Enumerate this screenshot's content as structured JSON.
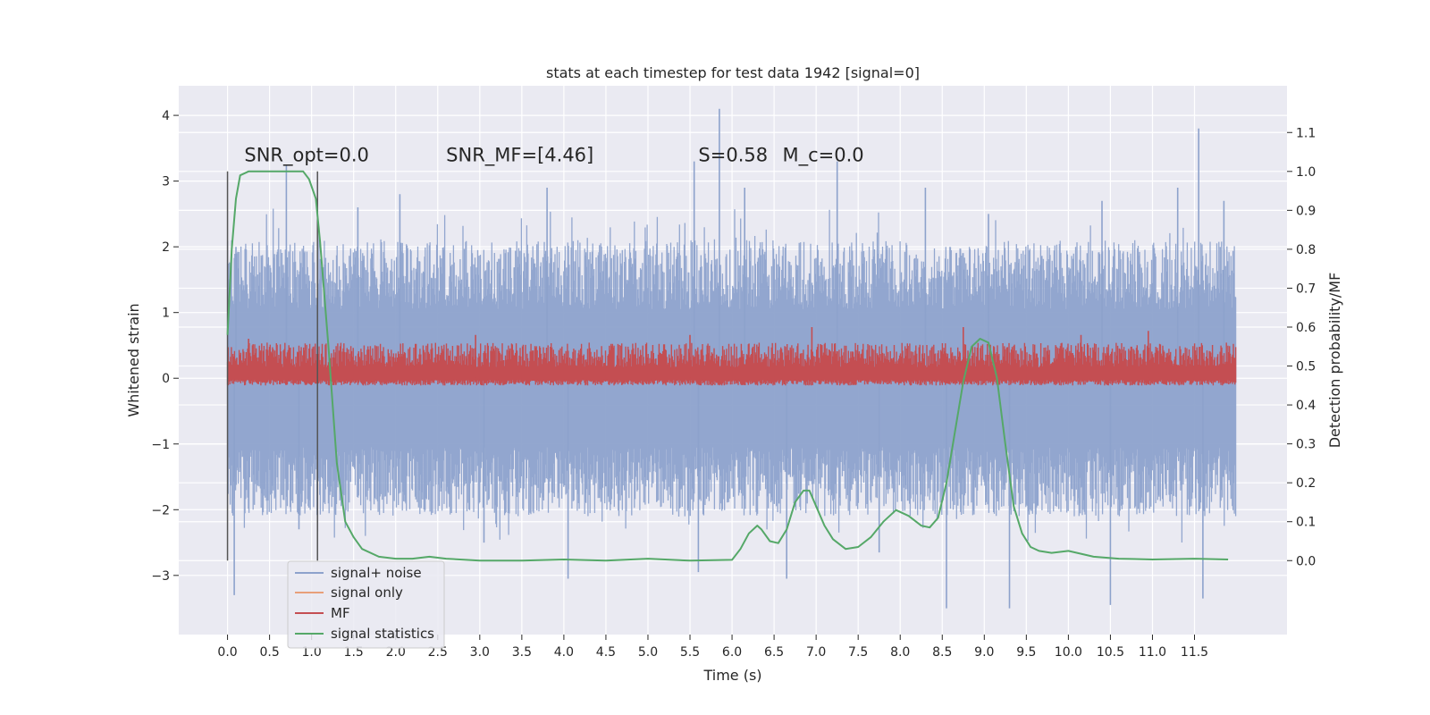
{
  "chart_data": {
    "type": "line",
    "title": "stats at each timestep for test data 1942 [signal=0]",
    "xlabel": "Time (s)",
    "ylabel": "Whitened strain",
    "y2label": "Detection probability/MF",
    "xlim": [
      -0.58,
      12.6
    ],
    "ylim": [
      -3.9,
      4.45
    ],
    "y2lim": [
      -0.19,
      1.22
    ],
    "xticks": [
      0.0,
      0.5,
      1.0,
      1.5,
      2.0,
      2.5,
      3.0,
      3.5,
      4.0,
      4.5,
      5.0,
      5.5,
      6.0,
      6.5,
      7.0,
      7.5,
      8.0,
      8.5,
      9.0,
      9.5,
      10.0,
      10.5,
      11.0,
      11.5
    ],
    "xtick_labels": [
      "0.0",
      "0.5",
      "1.0",
      "1.5",
      "2.0",
      "2.5",
      "3.0",
      "3.5",
      "4.0",
      "4.5",
      "5.0",
      "5.5",
      "6.0",
      "6.5",
      "7.0",
      "7.5",
      "8.0",
      "8.5",
      "9.0",
      "9.5",
      "10.0",
      "10.5",
      "11.0",
      "11.5"
    ],
    "yticks": [
      -3,
      -2,
      -1,
      0,
      1,
      2,
      3,
      4
    ],
    "ytick_labels": [
      "−3",
      "−2",
      "−1",
      "0",
      "1",
      "2",
      "3",
      "4"
    ],
    "y2ticks": [
      0.0,
      0.1,
      0.2,
      0.3,
      0.4,
      0.5,
      0.6,
      0.7,
      0.8,
      0.9,
      1.0,
      1.1
    ],
    "y2tick_labels": [
      "0.0",
      "0.1",
      "0.2",
      "0.3",
      "0.4",
      "0.5",
      "0.6",
      "0.7",
      "0.8",
      "0.9",
      "1.0",
      "1.1"
    ],
    "grid": true,
    "legend_position": "lower-left",
    "time_range": [
      0.0,
      11.99
    ],
    "signal_noise": {
      "name": "signal+ noise",
      "color": "#8da2cc",
      "band": [
        -1.4,
        1.4
      ],
      "peaks_max": [
        [
          0.1,
          2.0
        ],
        [
          0.7,
          3.25
        ],
        [
          1.55,
          2.6
        ],
        [
          2.05,
          2.8
        ],
        [
          3.8,
          2.9
        ],
        [
          5.55,
          3.3
        ],
        [
          5.85,
          4.1
        ],
        [
          6.15,
          2.9
        ],
        [
          7.25,
          3.3
        ],
        [
          8.3,
          2.9
        ],
        [
          9.05,
          2.5
        ],
        [
          10.4,
          2.7
        ],
        [
          11.3,
          2.9
        ],
        [
          11.55,
          3.8
        ],
        [
          11.85,
          2.7
        ]
      ],
      "peaks_min": [
        [
          0.08,
          -3.3
        ],
        [
          0.85,
          -2.3
        ],
        [
          3.05,
          -2.5
        ],
        [
          4.05,
          -3.05
        ],
        [
          5.6,
          -2.95
        ],
        [
          6.65,
          -3.05
        ],
        [
          7.75,
          -2.65
        ],
        [
          8.55,
          -3.5
        ],
        [
          9.3,
          -3.5
        ],
        [
          10.5,
          -3.45
        ],
        [
          11.6,
          -3.35
        ]
      ]
    },
    "signal_only": {
      "name": "signal only",
      "color": "#e8a07a"
    },
    "mf": {
      "name": "MF",
      "color": "#c44e52",
      "baseline": 0.47,
      "band": [
        0.45,
        0.56
      ],
      "peaks": [
        [
          0.25,
          0.57
        ],
        [
          2.95,
          0.58
        ],
        [
          5.5,
          0.58
        ],
        [
          6.95,
          0.6
        ],
        [
          8.75,
          0.6
        ],
        [
          10.15,
          0.58
        ],
        [
          10.95,
          0.59
        ]
      ]
    },
    "signal_statistics": {
      "name": "signal statistics",
      "color": "#55a868",
      "x": [
        0.0,
        0.05,
        0.1,
        0.15,
        0.25,
        0.4,
        0.6,
        0.8,
        0.9,
        0.97,
        1.05,
        1.1,
        1.2,
        1.3,
        1.4,
        1.5,
        1.6,
        1.8,
        2.0,
        2.2,
        2.4,
        2.6,
        3.0,
        3.5,
        4.0,
        4.5,
        5.0,
        5.5,
        6.0,
        6.1,
        6.2,
        6.3,
        6.35,
        6.45,
        6.55,
        6.65,
        6.75,
        6.85,
        6.92,
        7.0,
        7.1,
        7.2,
        7.35,
        7.5,
        7.65,
        7.8,
        7.95,
        8.1,
        8.25,
        8.35,
        8.45,
        8.55,
        8.65,
        8.75,
        8.85,
        8.95,
        9.05,
        9.15,
        9.25,
        9.35,
        9.45,
        9.55,
        9.65,
        9.8,
        10.0,
        10.3,
        10.6,
        11.0,
        11.5,
        11.9
      ],
      "y": [
        0.58,
        0.8,
        0.93,
        0.99,
        1.0,
        1.0,
        1.0,
        1.0,
        1.0,
        0.98,
        0.93,
        0.82,
        0.55,
        0.25,
        0.1,
        0.06,
        0.03,
        0.01,
        0.005,
        0.005,
        0.01,
        0.005,
        0.0,
        0.0,
        0.003,
        0.0,
        0.005,
        0.0,
        0.002,
        0.03,
        0.07,
        0.09,
        0.08,
        0.05,
        0.045,
        0.08,
        0.15,
        0.18,
        0.18,
        0.14,
        0.09,
        0.055,
        0.03,
        0.035,
        0.06,
        0.1,
        0.13,
        0.115,
        0.09,
        0.085,
        0.11,
        0.2,
        0.33,
        0.46,
        0.55,
        0.57,
        0.56,
        0.47,
        0.3,
        0.14,
        0.07,
        0.035,
        0.025,
        0.02,
        0.025,
        0.01,
        0.005,
        0.003,
        0.005,
        0.003
      ]
    },
    "vlines": [
      {
        "x": 0.0,
        "y2_range": [
          0.0,
          1.0
        ]
      },
      {
        "x": 1.07,
        "y2_range": [
          0.0,
          1.0
        ]
      }
    ],
    "annotations": [
      {
        "text": "SNR_opt=0.0",
        "x": 0.2,
        "y": 3.3
      },
      {
        "text": "SNR_MF=[4.46]",
        "x": 2.6,
        "y": 3.3
      },
      {
        "text": "S=0.58",
        "x": 5.6,
        "y": 3.3
      },
      {
        "text": "M_c=0.0",
        "x": 6.6,
        "y": 3.3
      }
    ]
  }
}
